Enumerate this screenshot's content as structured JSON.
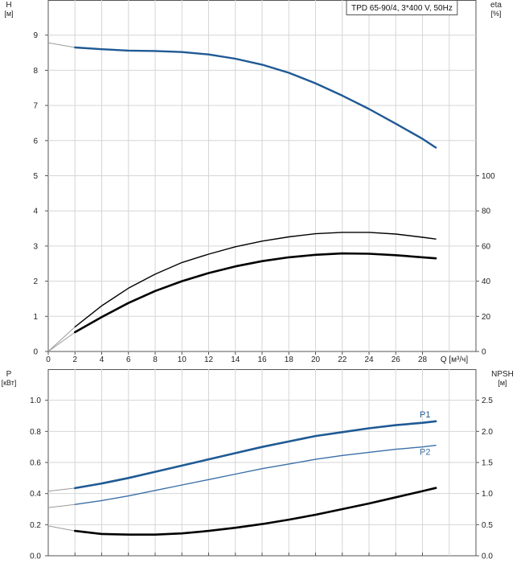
{
  "chart_data": [
    {
      "type": "line",
      "legend_text": "TPD 65-90/4, 3*400 V, 50Hz",
      "legend_placement": "top-right",
      "grid": true,
      "xlabel": "Q [м³/ч]",
      "x_ticks": [
        "0",
        "2",
        "4",
        "6",
        "8",
        "10",
        "12",
        "14",
        "16",
        "18",
        "20",
        "22",
        "24",
        "26",
        "28"
      ],
      "xlim": [
        0,
        32
      ],
      "y_left": {
        "name": "H",
        "unit": "[м]",
        "ylim": [
          0,
          10
        ],
        "ticks": [
          "0",
          "1",
          "2",
          "3",
          "4",
          "5",
          "6",
          "7",
          "8",
          "9"
        ]
      },
      "y_right": {
        "name": "eta",
        "unit": "[%]",
        "ylim": [
          0,
          200
        ],
        "ticks": [
          "0",
          "20",
          "40",
          "60",
          "80",
          "100"
        ]
      },
      "series": [
        {
          "axis": "left",
          "color": "#1f5a94",
          "x": [
            0,
            2,
            4,
            6,
            8,
            10,
            12,
            14,
            16,
            18,
            20,
            22,
            24,
            26,
            28,
            29
          ],
          "y": [
            8.78,
            8.65,
            8.6,
            8.56,
            8.55,
            8.52,
            8.45,
            8.33,
            8.16,
            7.93,
            7.63,
            7.28,
            6.9,
            6.48,
            6.05,
            5.8
          ],
          "extrapolated_until": 2
        },
        {
          "axis": "right",
          "color": "#000000",
          "x": [
            0,
            2,
            4,
            6,
            8,
            10,
            12,
            14,
            16,
            18,
            20,
            22,
            24,
            26,
            28,
            29
          ],
          "y": [
            0,
            14,
            26,
            36,
            44,
            50.6,
            55.4,
            59.6,
            62.8,
            65.2,
            67.0,
            67.8,
            67.8,
            66.8,
            65.0,
            64
          ],
          "extrapolated_until": 2
        },
        {
          "axis": "right",
          "color": "#000000",
          "thick": true,
          "x": [
            0,
            2,
            4,
            6,
            8,
            10,
            12,
            14,
            16,
            18,
            20,
            22,
            24,
            26,
            28,
            29
          ],
          "y": [
            0,
            11,
            19.6,
            27.6,
            34.4,
            40.0,
            44.6,
            48.4,
            51.4,
            53.6,
            55.0,
            55.8,
            55.6,
            54.8,
            53.6,
            53
          ],
          "extrapolated_until": 2
        }
      ]
    },
    {
      "type": "line",
      "grid": true,
      "xlim": [
        0,
        32
      ],
      "x_ticks_count": 15,
      "y_left": {
        "name": "P",
        "unit": "[кВт]",
        "ylim": [
          0,
          1.2
        ],
        "ticks": [
          "0.0",
          "0.2",
          "0.4",
          "0.6",
          "0.8",
          "1.0"
        ]
      },
      "y_right": {
        "name": "NPSH",
        "unit": "[м]",
        "ylim": [
          0,
          3
        ],
        "ticks": [
          "0.0",
          "0.5",
          "1.0",
          "1.5",
          "2.0",
          "2.5"
        ]
      },
      "series": [
        {
          "name": "P1",
          "axis": "left",
          "color": "#1f5a94",
          "thick": true,
          "x": [
            0,
            2,
            4,
            6,
            8,
            10,
            12,
            14,
            16,
            18,
            20,
            22,
            24,
            26,
            28,
            29
          ],
          "y": [
            0.415,
            0.435,
            0.465,
            0.5,
            0.54,
            0.58,
            0.62,
            0.66,
            0.7,
            0.735,
            0.77,
            0.795,
            0.82,
            0.84,
            0.855,
            0.865
          ],
          "extrapolated_until": 2
        },
        {
          "name": "P2",
          "axis": "left",
          "color": "#3a6fa8",
          "x": [
            0,
            2,
            4,
            6,
            8,
            10,
            12,
            14,
            16,
            18,
            20,
            22,
            24,
            26,
            28,
            29
          ],
          "y": [
            0.31,
            0.33,
            0.355,
            0.385,
            0.42,
            0.455,
            0.49,
            0.525,
            0.56,
            0.59,
            0.62,
            0.645,
            0.665,
            0.685,
            0.7,
            0.71
          ],
          "extrapolated_until": 2
        },
        {
          "axis": "right",
          "color": "#000000",
          "thick": true,
          "x": [
            0,
            2,
            4,
            6,
            8,
            10,
            12,
            14,
            16,
            18,
            20,
            22,
            24,
            26,
            28,
            29
          ],
          "y": [
            0.48,
            0.4,
            0.35,
            0.34,
            0.34,
            0.36,
            0.4,
            0.45,
            0.51,
            0.58,
            0.66,
            0.75,
            0.84,
            0.94,
            1.04,
            1.09
          ],
          "extrapolated_until": 2
        }
      ]
    }
  ]
}
